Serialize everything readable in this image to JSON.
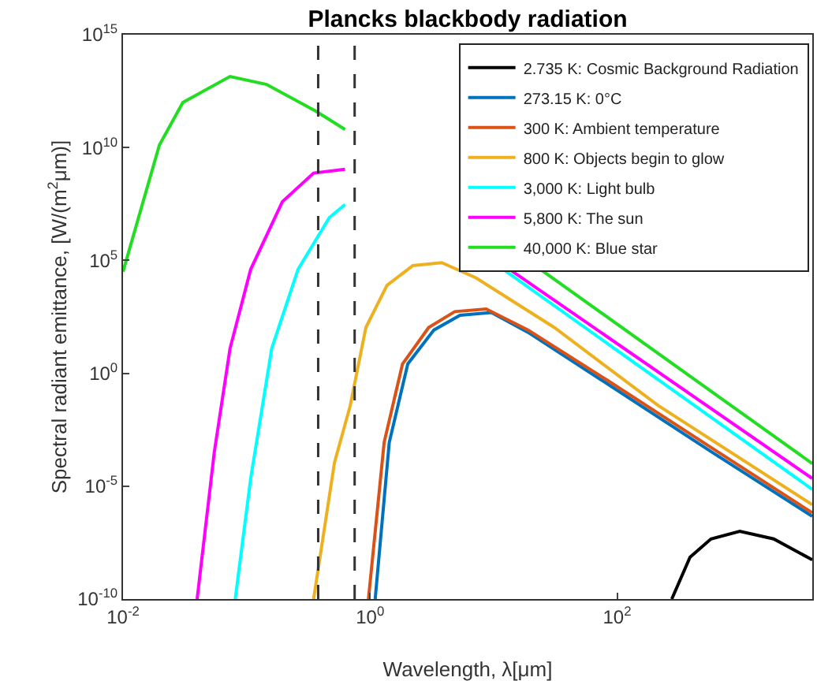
{
  "chart_data": {
    "type": "line",
    "title": "Plancks blackbody radiation",
    "xlabel": "Wavelength, λ[μm]",
    "ylabel": "Spectral radiant emittance, [W/(m$^{2}$μm)]",
    "log": "xy",
    "xlim": [
      0.01,
      3800
    ],
    "ylim": [
      1e-10,
      1000000000000000.0
    ],
    "xticks": [
      {
        "value": 0.01,
        "label": "10$^{-2}$"
      },
      {
        "value": 1,
        "label": "10$^{0}$"
      },
      {
        "value": 100,
        "label": "10$^{2}$"
      }
    ],
    "yticks": [
      {
        "value": 1e-10,
        "label": "10$^{-10}$"
      },
      {
        "value": 1e-05,
        "label": "10$^{-5}$"
      },
      {
        "value": 1,
        "label": "10$^{0}$"
      },
      {
        "value": 100000.0,
        "label": "10$^{5}$"
      },
      {
        "value": 10000000000.0,
        "label": "10$^{10}$"
      },
      {
        "value": 1000000000000000.0,
        "label": "10$^{15}$"
      }
    ],
    "grid": false,
    "legend": "top right",
    "line_style": "solid",
    "marker": "none",
    "series": [
      {
        "name": "2.735 K: Cosmic Background Radiation",
        "color": "#000000",
        "x": [
          277,
          389,
          575,
          984,
          1850,
          3800
        ],
        "values": [
          1e-10,
          7.1e-09,
          4.6e-08,
          1e-07,
          4.6e-08,
          5.5e-09
        ]
      },
      {
        "name": "273.15 K: 0°C",
        "color": "#0072bd",
        "x": [
          1.1,
          1.43,
          2.02,
          3.29,
          5.35,
          9.6,
          19,
          82,
          575,
          3800
        ],
        "values": [
          1e-10,
          0.00087,
          2.6,
          83,
          370,
          490,
          65,
          0.36,
          0.00034,
          4.6e-07
        ]
      },
      {
        "name": "300 K: Ambient temperature",
        "color": "#d95319",
        "x": [
          0.97,
          1.3,
          1.83,
          2.98,
          4.85,
          8.7,
          19,
          82,
          575,
          3800
        ],
        "values": [
          1e-10,
          0.00087,
          2.6,
          107,
          540,
          710,
          83,
          0.52,
          0.00052,
          6.6e-07
        ]
      },
      {
        "name": "800 K: Objects begin to glow",
        "color": "#edb120",
        "x": [
          0.349,
          0.515,
          0.69,
          0.925,
          1.37,
          2.22,
          3.8,
          7.2,
          31,
          217,
          3800
        ],
        "values": [
          1e-10,
          0.00011,
          0.036,
          107,
          7800,
          59000,
          80000,
          17000,
          107,
          0.036,
          1.5e-06
        ]
      },
      {
        "name": "3,000 K: Light bulb",
        "color": "#00ffff",
        "x": [
          0.081,
          0.108,
          0.16,
          0.261,
          0.468,
          0.627,
          3,
          12,
          3800
        ],
        "values": [
          1e-10,
          2.2e-05,
          12.6,
          40000,
          7900000.0,
          30000000.0,
          null,
          40000,
          7.2e-06
        ]
      },
      {
        "name": "5,800 K: The sun",
        "color": "#ff00ff",
        "x": [
          0.0398,
          0.0548,
          0.0735,
          0.108,
          0.195,
          0.349,
          0.627,
          3,
          13.5,
          3800
        ],
        "values": [
          1e-10,
          0.00032,
          12.6,
          40000,
          40000000.0,
          740000000.0,
          1100000000.0,
          null,
          40000,
          2.2e-05
        ]
      },
      {
        "name": "40,000 K: Blue star",
        "color": "#22dd22",
        "x": [
          0.01,
          0.0197,
          0.0305,
          0.0735,
          0.145,
          0.366,
          0.627,
          3,
          24,
          3800
        ],
        "values": [
          32000,
          13000000000.0,
          1000000000000.0,
          14000000000000.0,
          6300000000000.0,
          400000000000.0,
          63000000000.0,
          null,
          40000,
          0.0001
        ]
      }
    ],
    "ref_lines": [
      {
        "axis": "x",
        "value": 0.38,
        "color": "#333333",
        "line_style": "dashed"
      },
      {
        "axis": "x",
        "value": 0.75,
        "color": "#333333",
        "line_style": "dashed"
      }
    ]
  }
}
